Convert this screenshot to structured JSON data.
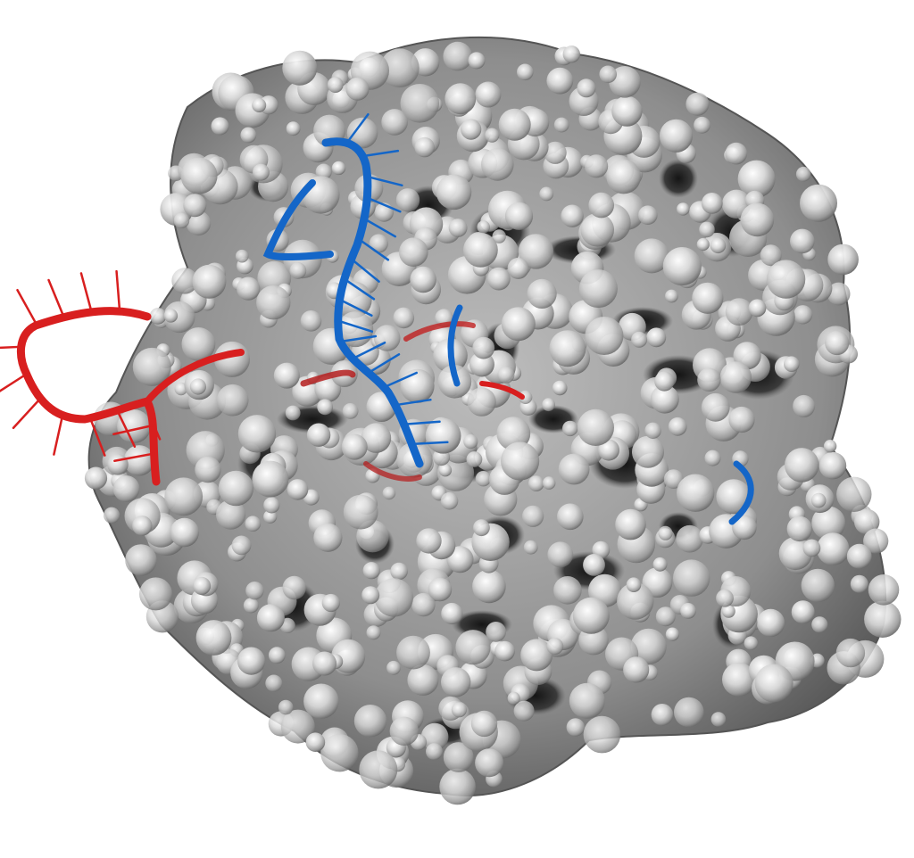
{
  "image": {
    "background": "#ffffff",
    "subject": "protein-rna-dna-complex",
    "protein_surface_color": "#c8c8c8",
    "rna_color": "#e02020",
    "dna_color": "#1466c8",
    "style": "molecular-surface-with-cartoon-nucleic-acid"
  }
}
